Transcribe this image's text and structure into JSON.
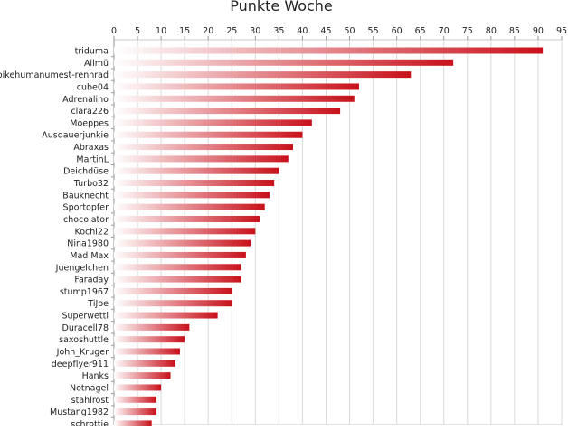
{
  "chart_data": {
    "type": "bar",
    "orientation": "horizontal",
    "title": "Punkte Woche",
    "xlabel": "",
    "ylabel": "",
    "xlim": [
      0,
      95
    ],
    "xticks": [
      0,
      5,
      10,
      15,
      20,
      25,
      30,
      35,
      40,
      45,
      50,
      55,
      60,
      65,
      70,
      75,
      80,
      85,
      90,
      95
    ],
    "x_axis_position": "top",
    "grid": true,
    "bar_color": "#c8101a",
    "bar_gradient_start": "#ffffff",
    "categories": [
      "triduma",
      "Allmü",
      "bikehumanumest-rennrad",
      "cube04",
      "Adrenalino",
      "clara226",
      "Moeppes",
      "Ausdauerjunkie",
      "Abraxas",
      "MartinL",
      "Deichdüse",
      "Turbo32",
      "Bauknecht",
      "Sportopfer",
      "chocolator",
      "Kochi22",
      "Nina1980",
      "Mad Max",
      "Juengelchen",
      "Faraday",
      "stump1967",
      "TiJoe",
      "Superwetti",
      "Duracell78",
      "saxoshuttle",
      "John_Kruger",
      "deepflyer911",
      "Hanks",
      "Notnagel",
      "stahlrost",
      "Mustang1982",
      "schrottie"
    ],
    "values": [
      91,
      72,
      63,
      52,
      51,
      48,
      42,
      40,
      38,
      37,
      35,
      34,
      33,
      32,
      31,
      30,
      29,
      28,
      27,
      27,
      25,
      25,
      22,
      16,
      15,
      14,
      13,
      12,
      10,
      9,
      9,
      8
    ]
  }
}
